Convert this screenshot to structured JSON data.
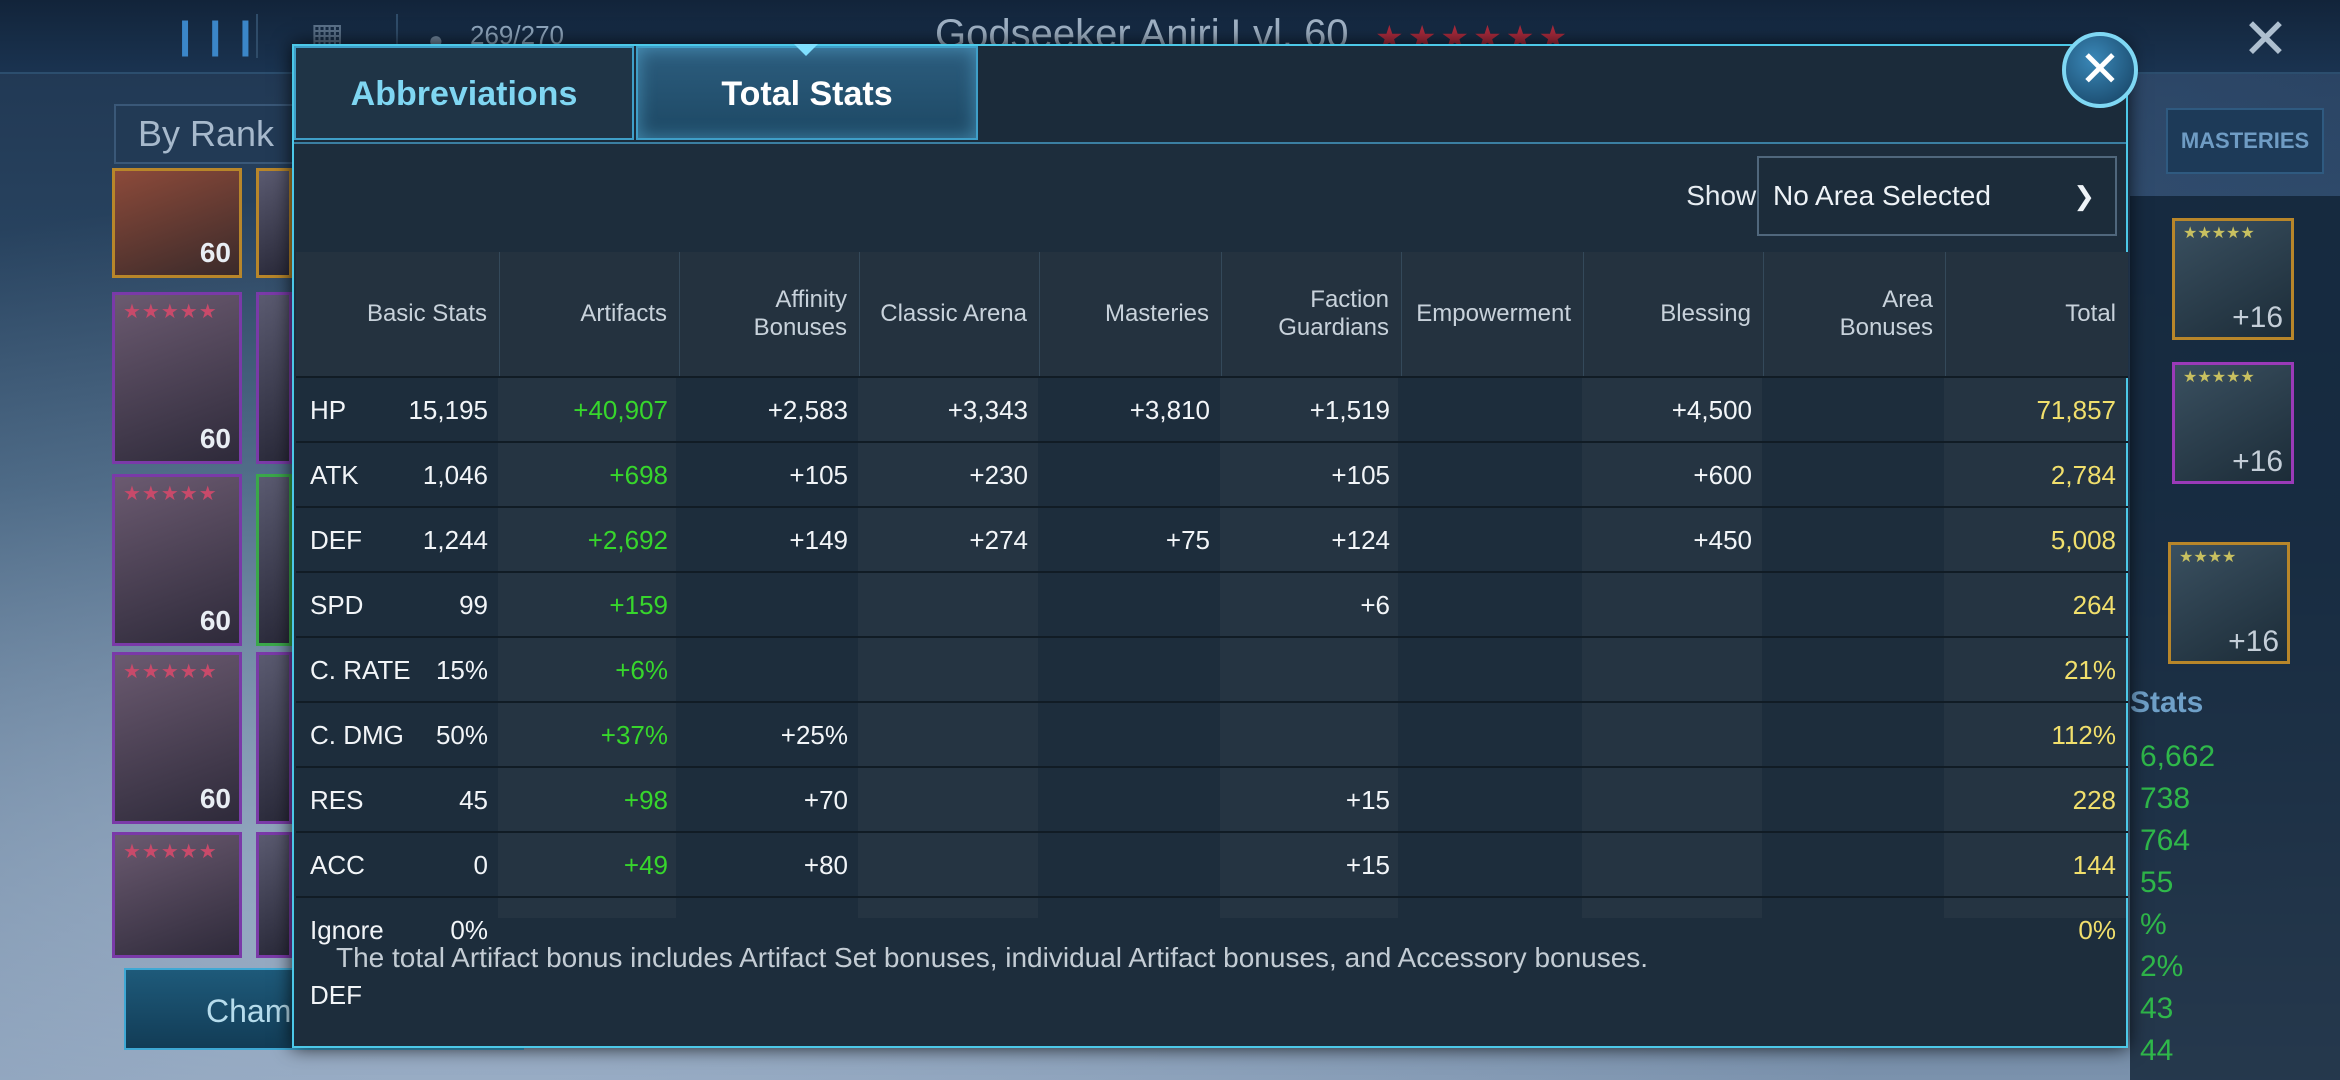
{
  "background": {
    "energy": "269/270",
    "hero_title": "Godseeker Aniri Lvl. 60",
    "stars": "★★★★★★",
    "sort_label": "By Rank",
    "champion_button": "Champ",
    "masteries_tab": "MASTERIES",
    "right_panel_title": "Stats",
    "right_panel_values": [
      "6,662",
      "738",
      "764",
      "55",
      "%",
      "2%",
      "43",
      "44"
    ],
    "portrait_levels": [
      "60",
      "60",
      "60",
      "60",
      ""
    ],
    "gear_plus": [
      "+16",
      "+16",
      "+16"
    ]
  },
  "modal": {
    "tabs": [
      {
        "label": "Abbreviations",
        "active": false
      },
      {
        "label": "Total Stats",
        "active": true
      }
    ],
    "close_icon": "close-icon",
    "area_label": "Showing Area Bonuses for:",
    "area_select_value": "No Area Selected",
    "columns": [
      "Basic Stats",
      "Artifacts",
      "Affinity Bonuses",
      "Classic Arena",
      "Masteries",
      "Faction Guardians",
      "Empowerment",
      "Blessing",
      "Area Bonuses",
      "Total"
    ],
    "rows": [
      {
        "stat": "HP",
        "basic": "15,195",
        "artifacts": "+40,907",
        "affinity": "+2,583",
        "arena": "+3,343",
        "masteries": "+3,810",
        "faction": "+1,519",
        "empowerment": "",
        "blessing": "+4,500",
        "area": "",
        "total": "71,857"
      },
      {
        "stat": "ATK",
        "basic": "1,046",
        "artifacts": "+698",
        "affinity": "+105",
        "arena": "+230",
        "masteries": "",
        "faction": "+105",
        "empowerment": "",
        "blessing": "+600",
        "area": "",
        "total": "2,784"
      },
      {
        "stat": "DEF",
        "basic": "1,244",
        "artifacts": "+2,692",
        "affinity": "+149",
        "arena": "+274",
        "masteries": "+75",
        "faction": "+124",
        "empowerment": "",
        "blessing": "+450",
        "area": "",
        "total": "5,008"
      },
      {
        "stat": "SPD",
        "basic": "99",
        "artifacts": "+159",
        "affinity": "",
        "arena": "",
        "masteries": "",
        "faction": "+6",
        "empowerment": "",
        "blessing": "",
        "area": "",
        "total": "264"
      },
      {
        "stat": "C. RATE",
        "basic": "15%",
        "artifacts": "+6%",
        "affinity": "",
        "arena": "",
        "masteries": "",
        "faction": "",
        "empowerment": "",
        "blessing": "",
        "area": "",
        "total": "21%"
      },
      {
        "stat": "C. DMG",
        "basic": "50%",
        "artifacts": "+37%",
        "affinity": "+25%",
        "arena": "",
        "masteries": "",
        "faction": "",
        "empowerment": "",
        "blessing": "",
        "area": "",
        "total": "112%"
      },
      {
        "stat": "RES",
        "basic": "45",
        "artifacts": "+98",
        "affinity": "+70",
        "arena": "",
        "masteries": "",
        "faction": "+15",
        "empowerment": "",
        "blessing": "",
        "area": "",
        "total": "228"
      },
      {
        "stat": "ACC",
        "basic": "0",
        "artifacts": "+49",
        "affinity": "+80",
        "arena": "",
        "masteries": "",
        "faction": "+15",
        "empowerment": "",
        "blessing": "",
        "area": "",
        "total": "144"
      },
      {
        "stat": "Ignore DEF",
        "basic": "0%",
        "artifacts": "",
        "affinity": "",
        "arena": "",
        "masteries": "",
        "faction": "",
        "empowerment": "",
        "blessing": "",
        "area": "",
        "total": "0%"
      }
    ],
    "footnote": "The total Artifact bonus includes Artifact Set bonuses, individual Artifact bonuses, and Accessory bonuses."
  },
  "colors": {
    "accent": "#4cc8e8",
    "artifact_green": "#37d62c",
    "total_yellow": "#f1df6c"
  }
}
